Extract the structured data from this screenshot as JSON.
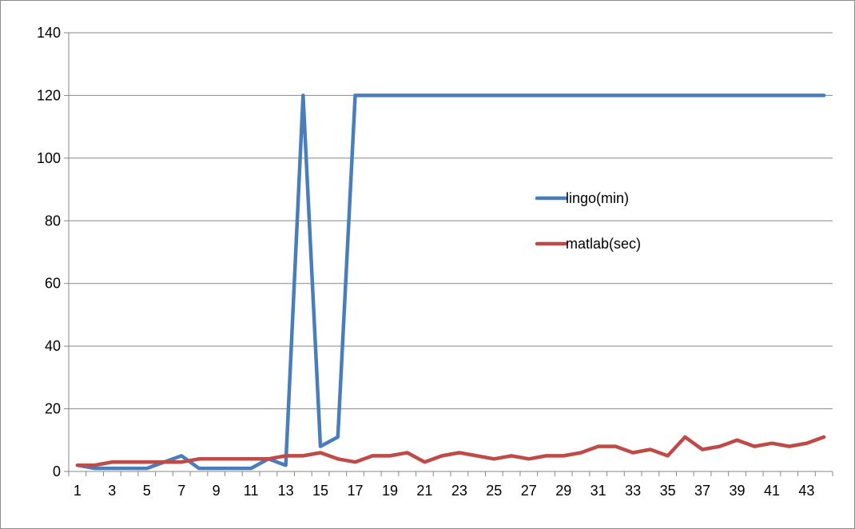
{
  "chart_data": {
    "type": "line",
    "x": [
      1,
      2,
      3,
      4,
      5,
      6,
      7,
      8,
      9,
      10,
      11,
      12,
      13,
      14,
      15,
      16,
      17,
      18,
      19,
      20,
      21,
      22,
      23,
      24,
      25,
      26,
      27,
      28,
      29,
      30,
      31,
      32,
      33,
      34,
      35,
      36,
      37,
      38,
      39,
      40,
      41,
      42,
      43,
      44
    ],
    "x_tick_labels": [
      "1",
      "3",
      "5",
      "7",
      "9",
      "11",
      "13",
      "15",
      "17",
      "19",
      "21",
      "23",
      "25",
      "27",
      "29",
      "31",
      "33",
      "35",
      "37",
      "39",
      "41",
      "43"
    ],
    "y_tick_labels": [
      "0",
      "20",
      "40",
      "60",
      "80",
      "100",
      "120",
      "140"
    ],
    "ylim": [
      0,
      140
    ],
    "y_major_unit": 20,
    "grid": "horizontal",
    "legend_position": "inside-right",
    "series": [
      {
        "name": "lingo(min)",
        "color": "#4a7ebb",
        "values": [
          2,
          1,
          1,
          1,
          1,
          3,
          5,
          1,
          1,
          1,
          1,
          4,
          2,
          120,
          8,
          11,
          120,
          120,
          120,
          120,
          120,
          120,
          120,
          120,
          120,
          120,
          120,
          120,
          120,
          120,
          120,
          120,
          120,
          120,
          120,
          120,
          120,
          120,
          120,
          120,
          120,
          120,
          120,
          120
        ]
      },
      {
        "name": "matlab(sec)",
        "color": "#be4b48",
        "values": [
          2,
          2,
          3,
          3,
          3,
          3,
          3,
          4,
          4,
          4,
          4,
          4,
          5,
          5,
          6,
          4,
          3,
          5,
          5,
          6,
          3,
          5,
          6,
          5,
          4,
          5,
          4,
          5,
          5,
          6,
          8,
          8,
          6,
          7,
          5,
          11,
          7,
          8,
          10,
          8,
          9,
          8,
          9,
          11
        ]
      }
    ]
  }
}
